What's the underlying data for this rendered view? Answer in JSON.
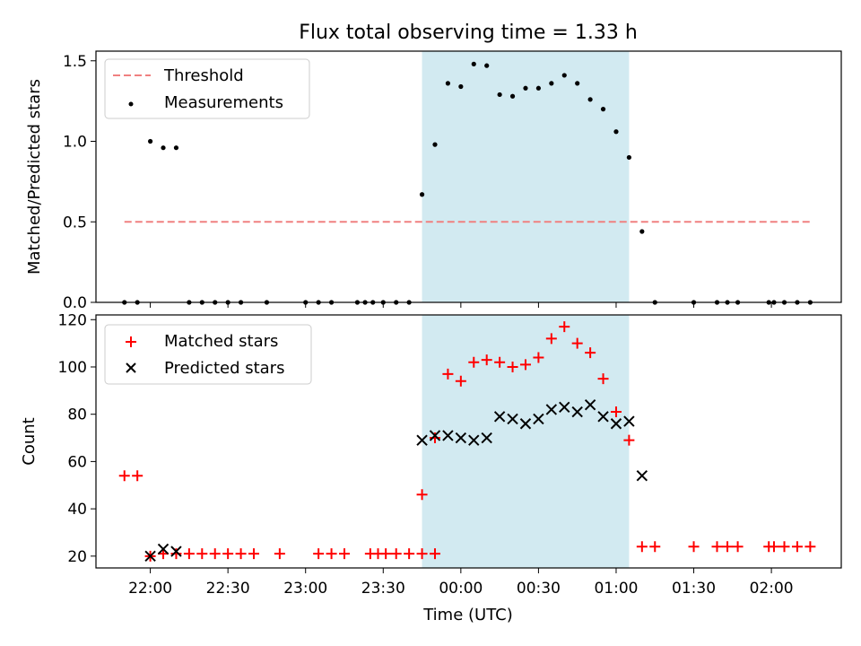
{
  "title": "Flux total observing time = 1.33 h",
  "chart_data": [
    {
      "type": "scatter",
      "ylabel": "Matched/Predicted stars",
      "ylim": [
        0,
        1.56
      ],
      "yticks": [
        0.0,
        0.5,
        1.0,
        1.5
      ],
      "ytick_labels": [
        "0.0",
        "0.5",
        "1.0",
        "1.5"
      ],
      "xlim": [
        "21:39",
        "02:27"
      ],
      "shaded_interval": [
        "23:45",
        "01:05"
      ],
      "shade_color": "#add8e6",
      "legend": {
        "position": "top-left",
        "entries": [
          "Threshold",
          "Measurements"
        ]
      },
      "threshold": {
        "name": "Threshold",
        "value": 0.5,
        "x_range": [
          "21:50",
          "02:15"
        ],
        "color": "#f08080",
        "style": "dashed"
      },
      "measurements": {
        "name": "Measurements",
        "color": "#000000",
        "points": [
          [
            "21:50",
            0.0
          ],
          [
            "21:55",
            0.0
          ],
          [
            "22:00",
            1.0
          ],
          [
            "22:05",
            0.96
          ],
          [
            "22:10",
            0.96
          ],
          [
            "22:15",
            0.0
          ],
          [
            "22:20",
            0.0
          ],
          [
            "22:25",
            0.0
          ],
          [
            "22:30",
            0.0
          ],
          [
            "22:35",
            0.0
          ],
          [
            "22:45",
            0.0
          ],
          [
            "23:00",
            0.0
          ],
          [
            "23:05",
            0.0
          ],
          [
            "23:10",
            0.0
          ],
          [
            "23:20",
            0.0
          ],
          [
            "23:23",
            0.0
          ],
          [
            "23:26",
            0.0
          ],
          [
            "23:30",
            0.0
          ],
          [
            "23:35",
            0.0
          ],
          [
            "23:40",
            0.0
          ],
          [
            "23:45",
            0.67
          ],
          [
            "23:50",
            0.98
          ],
          [
            "23:55",
            1.36
          ],
          [
            "00:00",
            1.34
          ],
          [
            "00:05",
            1.48
          ],
          [
            "00:10",
            1.47
          ],
          [
            "00:15",
            1.29
          ],
          [
            "00:20",
            1.28
          ],
          [
            "00:25",
            1.33
          ],
          [
            "00:30",
            1.33
          ],
          [
            "00:35",
            1.36
          ],
          [
            "00:40",
            1.41
          ],
          [
            "00:45",
            1.36
          ],
          [
            "00:50",
            1.26
          ],
          [
            "00:55",
            1.2
          ],
          [
            "01:00",
            1.06
          ],
          [
            "01:05",
            0.9
          ],
          [
            "01:10",
            0.44
          ],
          [
            "01:15",
            0.0
          ],
          [
            "01:30",
            0.0
          ],
          [
            "01:39",
            0.0
          ],
          [
            "01:43",
            0.0
          ],
          [
            "01:47",
            0.0
          ],
          [
            "01:59",
            0.0
          ],
          [
            "02:01",
            0.0
          ],
          [
            "02:05",
            0.0
          ],
          [
            "02:10",
            0.0
          ],
          [
            "02:15",
            0.0
          ]
        ]
      }
    },
    {
      "type": "scatter",
      "ylabel": "Count",
      "xlabel": "Time (UTC)",
      "ylim": [
        15,
        122
      ],
      "yticks": [
        20,
        40,
        60,
        80,
        100,
        120
      ],
      "ytick_labels": [
        "20",
        "40",
        "60",
        "80",
        "100",
        "120"
      ],
      "xlim": [
        "21:39",
        "02:27"
      ],
      "xticks": [
        "22:00",
        "22:30",
        "23:00",
        "23:30",
        "00:00",
        "00:30",
        "01:00",
        "01:30",
        "02:00"
      ],
      "xtick_labels": [
        "22:00",
        "22:30",
        "23:00",
        "23:30",
        "00:00",
        "00:30",
        "01:00",
        "01:30",
        "02:00"
      ],
      "shaded_interval": [
        "23:45",
        "01:05"
      ],
      "shade_color": "#add8e6",
      "legend": {
        "position": "top-left",
        "entries": [
          "Matched stars",
          "Predicted stars"
        ]
      },
      "series": [
        {
          "name": "Matched stars",
          "marker": "plus",
          "color": "#ff0000",
          "points": [
            [
              "21:50",
              54
            ],
            [
              "21:55",
              54
            ],
            [
              "22:00",
              20
            ],
            [
              "22:05",
              21
            ],
            [
              "22:10",
              21
            ],
            [
              "22:15",
              21
            ],
            [
              "22:20",
              21
            ],
            [
              "22:25",
              21
            ],
            [
              "22:30",
              21
            ],
            [
              "22:35",
              21
            ],
            [
              "22:40",
              21
            ],
            [
              "22:50",
              21
            ],
            [
              "23:05",
              21
            ],
            [
              "23:10",
              21
            ],
            [
              "23:15",
              21
            ],
            [
              "23:25",
              21
            ],
            [
              "23:28",
              21
            ],
            [
              "23:31",
              21
            ],
            [
              "23:35",
              21
            ],
            [
              "23:40",
              21
            ],
            [
              "23:45",
              21
            ],
            [
              "23:50",
              21
            ],
            [
              "23:45",
              46
            ],
            [
              "23:50",
              70
            ],
            [
              "23:55",
              97
            ],
            [
              "00:00",
              94
            ],
            [
              "00:05",
              102
            ],
            [
              "00:10",
              103
            ],
            [
              "00:15",
              102
            ],
            [
              "00:20",
              100
            ],
            [
              "00:25",
              101
            ],
            [
              "00:30",
              104
            ],
            [
              "00:35",
              112
            ],
            [
              "00:40",
              117
            ],
            [
              "00:45",
              110
            ],
            [
              "00:50",
              106
            ],
            [
              "00:55",
              95
            ],
            [
              "01:00",
              81
            ],
            [
              "01:05",
              69
            ],
            [
              "01:10",
              24
            ],
            [
              "01:15",
              24
            ],
            [
              "01:30",
              24
            ],
            [
              "01:39",
              24
            ],
            [
              "01:43",
              24
            ],
            [
              "01:47",
              24
            ],
            [
              "01:59",
              24
            ],
            [
              "02:01",
              24
            ],
            [
              "02:05",
              24
            ],
            [
              "02:10",
              24
            ],
            [
              "02:15",
              24
            ]
          ]
        },
        {
          "name": "Predicted stars",
          "marker": "x",
          "color": "#000000",
          "points": [
            [
              "22:00",
              20
            ],
            [
              "22:05",
              23
            ],
            [
              "22:10",
              22
            ],
            [
              "23:45",
              69
            ],
            [
              "23:50",
              71
            ],
            [
              "23:55",
              71
            ],
            [
              "00:00",
              70
            ],
            [
              "00:05",
              69
            ],
            [
              "00:10",
              70
            ],
            [
              "00:15",
              79
            ],
            [
              "00:20",
              78
            ],
            [
              "00:25",
              76
            ],
            [
              "00:30",
              78
            ],
            [
              "00:35",
              82
            ],
            [
              "00:40",
              83
            ],
            [
              "00:45",
              81
            ],
            [
              "00:50",
              84
            ],
            [
              "00:55",
              79
            ],
            [
              "01:00",
              76
            ],
            [
              "01:05",
              77
            ],
            [
              "01:10",
              54
            ]
          ]
        }
      ]
    }
  ]
}
